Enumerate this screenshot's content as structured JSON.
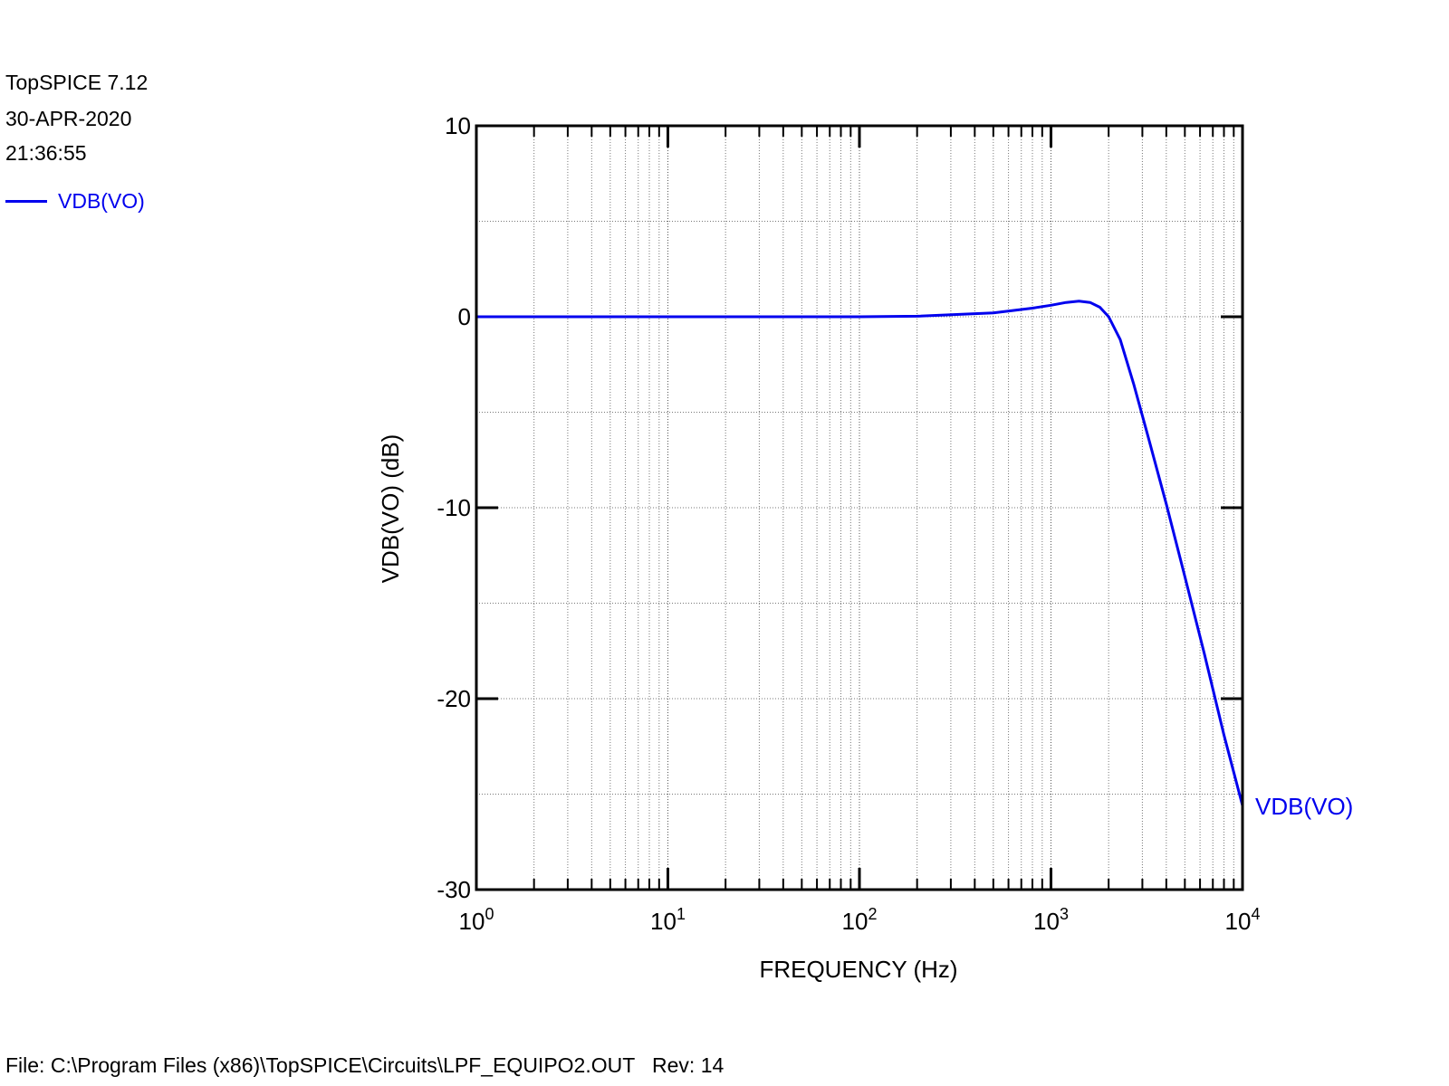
{
  "header": {
    "app": "TopSPICE 7.12",
    "date": "30-APR-2020",
    "time": "21:36:55"
  },
  "legend": {
    "label": "VDB(VO)"
  },
  "footer": {
    "text": "File: C:\\Program Files (x86)\\TopSPICE\\Circuits\\LPF_EQUIPO2.OUT   Rev: 14"
  },
  "colors": {
    "series": "#0000ee",
    "axis": "#000000",
    "grid": "#777777"
  },
  "chart_data": {
    "type": "line",
    "title": "",
    "xlabel": "FREQUENCY  (Hz)",
    "ylabel": "VDB(VO)  (dB)",
    "x_scale": "log",
    "xlim": [
      1,
      10000
    ],
    "ylim": [
      -30,
      10
    ],
    "x_ticks": [
      {
        "base": "10",
        "exp": "0",
        "value": 1
      },
      {
        "base": "10",
        "exp": "1",
        "value": 10
      },
      {
        "base": "10",
        "exp": "2",
        "value": 100
      },
      {
        "base": "10",
        "exp": "3",
        "value": 1000
      },
      {
        "base": "10",
        "exp": "4",
        "value": 10000
      }
    ],
    "y_ticks": [
      "10",
      "0",
      "-10",
      "-20",
      "-30"
    ],
    "grid": true,
    "series": [
      {
        "name": "VDB(VO)",
        "x": [
          1,
          10,
          100,
          200,
          500,
          800,
          1000,
          1200,
          1400,
          1600,
          1800,
          2000,
          2300,
          2700,
          3200,
          4000,
          5000,
          6300,
          8000,
          10000,
          11000
        ],
        "y": [
          0,
          0,
          0,
          0.03,
          0.2,
          0.45,
          0.6,
          0.75,
          0.82,
          0.75,
          0.5,
          0,
          -1.2,
          -3.5,
          -6.2,
          -9.8,
          -13.6,
          -17.6,
          -21.9,
          -25.6,
          -27.2
        ]
      }
    ]
  }
}
